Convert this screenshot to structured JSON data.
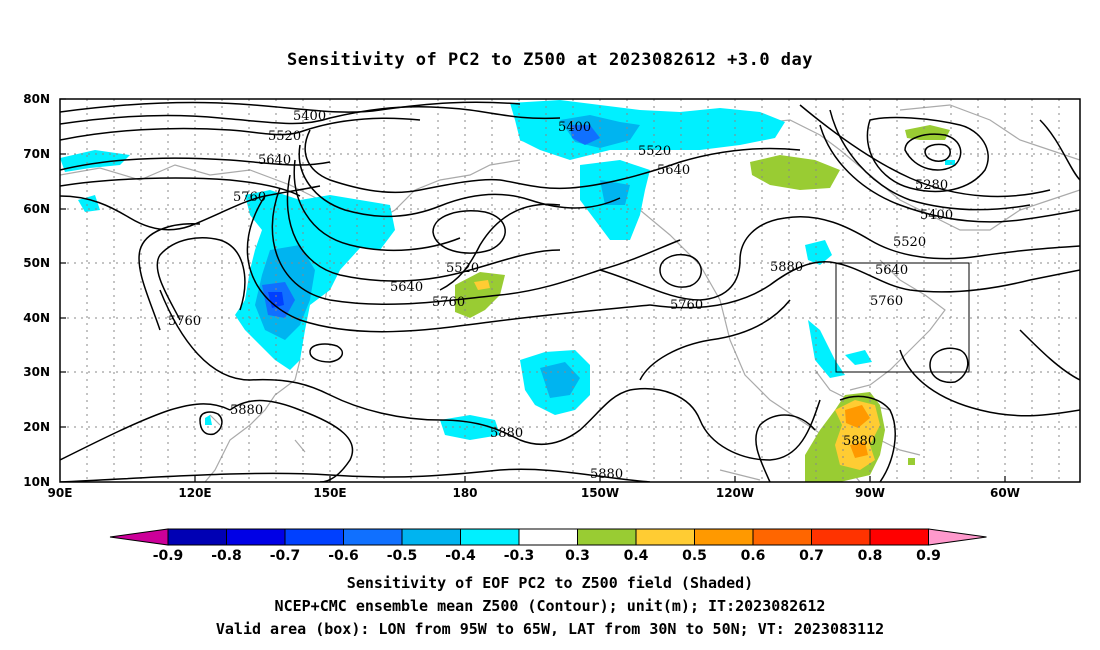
{
  "title": "Sensitivity of PC2 to Z500 at 2023082612 +3.0 day",
  "axes": {
    "x_ticks": [
      "90E",
      "120E",
      "150E",
      "180",
      "150W",
      "120W",
      "90W",
      "60W"
    ],
    "y_ticks": [
      "80N",
      "70N",
      "60N",
      "50N",
      "40N",
      "30N",
      "20N",
      "10N"
    ]
  },
  "contour_labels": [
    "5400",
    "5520",
    "5640",
    "5760",
    "5760",
    "5400",
    "5520",
    "5640",
    "5280",
    "5400",
    "5520",
    "5880",
    "5640",
    "5760",
    "5520",
    "5640",
    "5760",
    "5760",
    "5880",
    "5880",
    "5880",
    "5880"
  ],
  "colorbar": {
    "labels": [
      "-0.9",
      "-0.8",
      "-0.7",
      "-0.6",
      "-0.5",
      "-0.4",
      "-0.3",
      "0.3",
      "0.4",
      "0.5",
      "0.6",
      "0.7",
      "0.8",
      "0.9"
    ],
    "colors": [
      "#0000b4",
      "#0000e6",
      "#0040ff",
      "#1070ff",
      "#00b4f0",
      "#00f0ff",
      "#ffffff",
      "#99cc33",
      "#ffcc33",
      "#ff9900",
      "#ff6600",
      "#ff3300",
      "#ff0000"
    ],
    "low_arrow": "#cc0099",
    "high_arrow": "#ff99cc"
  },
  "captions": [
    "Sensitivity of EOF PC2 to Z500 field (Shaded)",
    "NCEP+CMC ensemble mean Z500 (Contour); unit(m); IT:2023082612",
    "Valid area (box): LON from 95W to 65W, LAT from 30N to 50N; VT: 2023083112"
  ]
}
